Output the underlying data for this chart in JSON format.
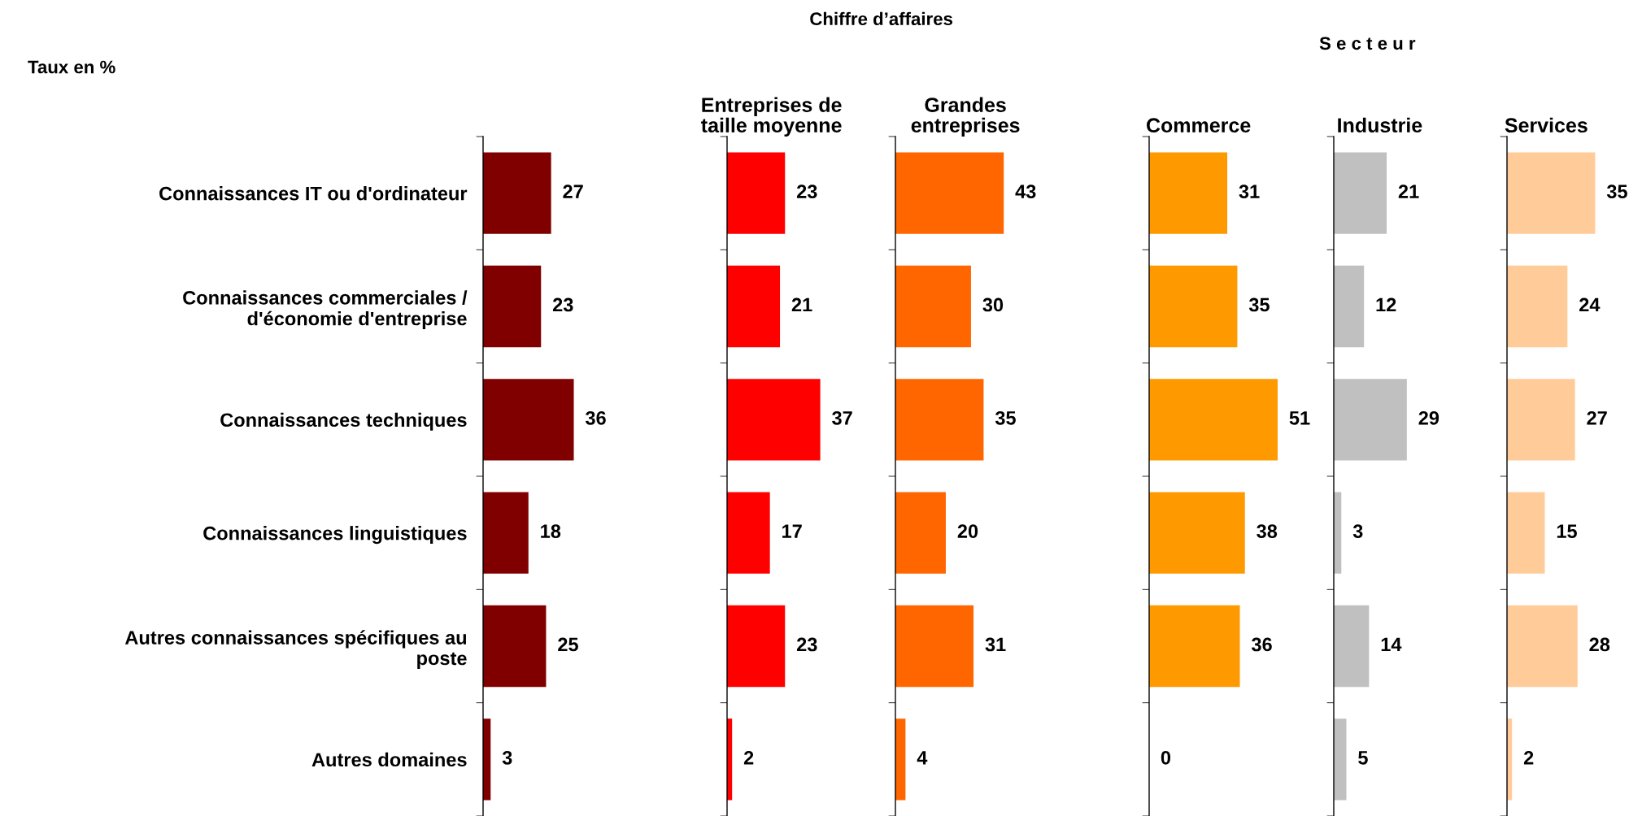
{
  "chart_data": [
    {
      "type": "bar",
      "orientation": "horizontal",
      "ylabel": "Taux en %",
      "categories": [
        "Connaissances IT ou d'ordinateur",
        "Connaissances commerciales /\nd'économie d'entreprise",
        "Connaissances techniques",
        "Connaissances linguistiques",
        "Autres connaissances spécifiques au\nposte",
        "Autres domaines"
      ],
      "values": [
        27,
        23,
        36,
        18,
        25,
        3
      ],
      "color": "#800000",
      "data_labels": true
    },
    {
      "type": "bar",
      "orientation": "horizontal",
      "title": "Entreprises de\ntaille moyenne",
      "annotations": [
        "Chiffre d’affaires"
      ],
      "categories": [
        null,
        null,
        null,
        null,
        null,
        null
      ],
      "values": [
        23,
        21,
        37,
        17,
        23,
        2
      ],
      "color": "#ff0000",
      "data_labels": true
    },
    {
      "type": "bar",
      "orientation": "horizontal",
      "title": "Grandes\nentreprises",
      "categories": [
        null,
        null,
        null,
        null,
        null,
        null
      ],
      "values": [
        43,
        30,
        35,
        20,
        31,
        4
      ],
      "color": "#ff6600",
      "data_labels": true
    },
    {
      "type": "bar",
      "orientation": "horizontal",
      "title": "Commerce",
      "annotations": [
        "S e c t e u r"
      ],
      "categories": [
        null,
        null,
        null,
        null,
        null,
        null
      ],
      "values": [
        31,
        35,
        51,
        38,
        36,
        0
      ],
      "color": "#ff9900",
      "data_labels": true
    },
    {
      "type": "bar",
      "orientation": "horizontal",
      "title": "Industrie",
      "categories": [
        null,
        null,
        null,
        null,
        null,
        null
      ],
      "values": [
        21,
        12,
        29,
        3,
        14,
        5
      ],
      "color": "#c0c0c0",
      "data_labels": true
    },
    {
      "type": "bar",
      "orientation": "horizontal",
      "title": "Services",
      "categories": [
        null,
        null,
        null,
        null,
        null,
        null
      ],
      "values": [
        35,
        24,
        27,
        15,
        28,
        2
      ],
      "color": "#ffcc99",
      "data_labels": true
    }
  ]
}
